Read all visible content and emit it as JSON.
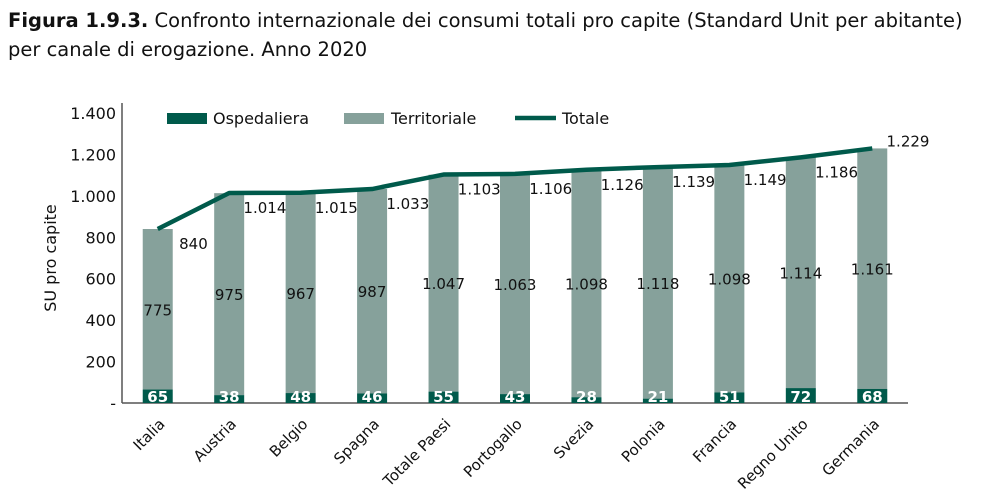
{
  "title_prefix": "Figura 1.9.3.",
  "title_text": " Confronto internazionale dei consumi totali pro capite (Standard Unit per abitante) per canale di erogazione. Anno 2020",
  "chart_data": {
    "type": "bar",
    "stacked": true,
    "categories": [
      "Italia",
      "Austria",
      "Belgio",
      "Spagna",
      "Totale Paesi",
      "Portogallo",
      "Svezia",
      "Polonia",
      "Francia",
      "Regno Unito",
      "Germania"
    ],
    "series": [
      {
        "name": "Ospedaliera",
        "type": "bar",
        "color": "#005a4b",
        "values": [
          65,
          38,
          48,
          46,
          55,
          43,
          28,
          21,
          51,
          72,
          68
        ],
        "labels": [
          "65",
          "38",
          "48",
          "46",
          "55",
          "43",
          "28",
          "21",
          "51",
          "72",
          "68"
        ]
      },
      {
        "name": "Territoriale",
        "type": "bar",
        "color": "#86a19b",
        "values": [
          775,
          975,
          967,
          987,
          1047,
          1063,
          1098,
          1118,
          1098,
          1114,
          1161
        ],
        "labels": [
          "775",
          "975",
          "967",
          "987",
          "1.047",
          "1.063",
          "1.098",
          "1.118",
          "1.098",
          "1.114",
          "1.161"
        ]
      },
      {
        "name": "Totale",
        "type": "line",
        "color": "#005a4b",
        "values": [
          840,
          1014,
          1015,
          1033,
          1103,
          1106,
          1126,
          1139,
          1149,
          1186,
          1229
        ],
        "labels": [
          "840",
          "1.014",
          "1.015",
          "1.033",
          "1.103",
          "1.106",
          "1.126",
          "1.139",
          "1.149",
          "1.186",
          "1.229"
        ]
      }
    ],
    "ylabel": "SU pro capite",
    "ylim": [
      0,
      1400
    ],
    "yticks": [
      0,
      200,
      400,
      600,
      800,
      1000,
      1200,
      1400
    ],
    "ytick_labels": [
      "-",
      "200",
      "400",
      "600",
      "800",
      "1.000",
      "1.200",
      "1.400"
    ],
    "legend": "top",
    "grid": false
  }
}
